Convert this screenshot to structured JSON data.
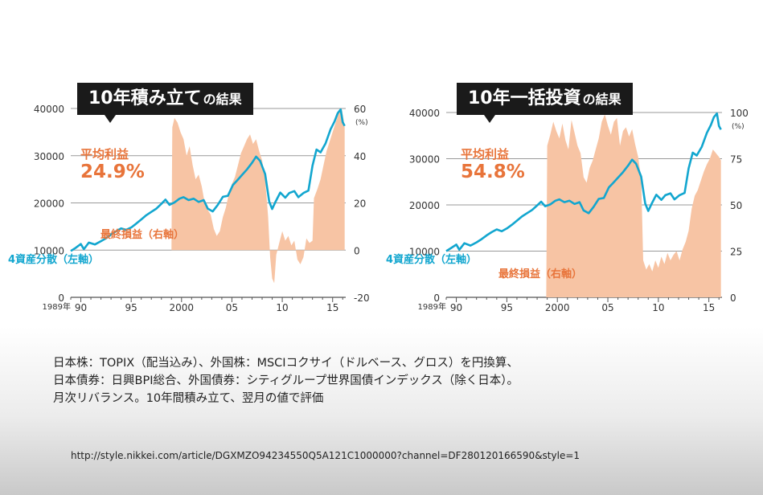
{
  "charts": {
    "left": {
      "title_big": "10年積み立て",
      "title_small": "の結果",
      "profit_label": "平均利益",
      "profit_value": "24.9%",
      "series_label_asset": "4資産分散（左軸）",
      "series_label_profit": "最終損益（右軸）"
    },
    "right": {
      "title_big": "10年一括投資",
      "title_small": "の結果",
      "profit_label": "平均利益",
      "profit_value": "54.8%",
      "series_label_asset": "4資産分散（左軸）",
      "series_label_profit": "最終損益（右軸）"
    }
  },
  "notes": [
    "日本株：TOPIX（配当込み）、外国株：MSCIコクサイ（ドルベース、グロス）を円換算、",
    "日本債券：日興BPI総合、外国債券：シティグループ世界国債インデックス（除く日本）。",
    "月次リバランス。10年間積み立て、翌月の値で評価"
  ],
  "url": "http://style.nikkei.com/article/DGXMZO94234550Q5A121C1000000?channel=DF280120166590&style=1",
  "colors": {
    "asset_line": "#12a6cf",
    "profit_fill": "#f7c4a4",
    "accent_text": "#e8743a",
    "axis_text": "#333333"
  },
  "chart_data": [
    {
      "type": "line",
      "x_tick_labels": [
        "1989年",
        "90",
        "95",
        "2000",
        "05",
        "10",
        "15"
      ],
      "x_ticks": [
        1989,
        1990,
        1995,
        2000,
        2005,
        2010,
        2015
      ],
      "xlim": [
        1989,
        2016.3
      ],
      "y_left_ticks": [
        0,
        10000,
        20000,
        30000,
        40000
      ],
      "ylim_left": [
        0,
        40000
      ],
      "y_right_ticks": [
        -20,
        0,
        20,
        40,
        60
      ],
      "y_right_unit": "(%)",
      "ylim_right": [
        -20,
        60
      ],
      "average_profit": "24.9%",
      "series": [
        {
          "name": "4資産分散（左軸）",
          "axis": "left",
          "style": "line",
          "points": [
            [
              1989,
              9800
            ],
            [
              1989.5,
              10500
            ],
            [
              1990,
              11300
            ],
            [
              1990.3,
              10200
            ],
            [
              1990.8,
              11600
            ],
            [
              1991.4,
              11200
            ],
            [
              1992,
              11900
            ],
            [
              1992.5,
              12500
            ],
            [
              1993,
              13300
            ],
            [
              1993.5,
              14000
            ],
            [
              1994,
              14600
            ],
            [
              1994.5,
              14300
            ],
            [
              1995,
              14800
            ],
            [
              1995.5,
              15600
            ],
            [
              1996,
              16500
            ],
            [
              1996.5,
              17400
            ],
            [
              1997,
              18100
            ],
            [
              1997.5,
              18800
            ],
            [
              1998,
              19800
            ],
            [
              1998.4,
              20700
            ],
            [
              1998.8,
              19600
            ],
            [
              1999.3,
              20100
            ],
            [
              1999.8,
              20900
            ],
            [
              2000.2,
              21200
            ],
            [
              2000.7,
              20600
            ],
            [
              2001.2,
              20900
            ],
            [
              2001.7,
              20200
            ],
            [
              2002.2,
              20600
            ],
            [
              2002.6,
              18800
            ],
            [
              2003.1,
              18200
            ],
            [
              2003.6,
              19600
            ],
            [
              2004.1,
              21300
            ],
            [
              2004.6,
              21500
            ],
            [
              2005.1,
              23800
            ],
            [
              2005.5,
              24700
            ],
            [
              2006,
              25900
            ],
            [
              2006.5,
              27100
            ],
            [
              2007,
              28500
            ],
            [
              2007.4,
              29800
            ],
            [
              2007.8,
              28900
            ],
            [
              2008.3,
              26100
            ],
            [
              2008.7,
              20300
            ],
            [
              2009,
              18700
            ],
            [
              2009.3,
              20100
            ],
            [
              2009.8,
              22200
            ],
            [
              2010.3,
              21100
            ],
            [
              2010.7,
              22100
            ],
            [
              2011.2,
              22500
            ],
            [
              2011.6,
              21200
            ],
            [
              2012.1,
              22100
            ],
            [
              2012.6,
              22600
            ],
            [
              2013,
              27900
            ],
            [
              2013.4,
              31300
            ],
            [
              2013.8,
              30700
            ],
            [
              2014.3,
              32600
            ],
            [
              2014.8,
              35600
            ],
            [
              2015.2,
              37300
            ],
            [
              2015.5,
              39000
            ],
            [
              2015.8,
              39800
            ],
            [
              2016,
              37100
            ],
            [
              2016.2,
              36300
            ]
          ]
        },
        {
          "name": "最終損益（右軸）",
          "axis": "right",
          "style": "area",
          "points": [
            [
              1999,
              2
            ],
            [
              1999.08,
              52
            ],
            [
              1999.3,
              56
            ],
            [
              1999.6,
              54
            ],
            [
              1999.9,
              50
            ],
            [
              2000.2,
              47
            ],
            [
              2000.5,
              40
            ],
            [
              2000.8,
              44
            ],
            [
              2001.1,
              36
            ],
            [
              2001.4,
              30
            ],
            [
              2001.7,
              32
            ],
            [
              2002,
              27
            ],
            [
              2002.3,
              20
            ],
            [
              2002.6,
              17
            ],
            [
              2002.9,
              15
            ],
            [
              2003.2,
              9
            ],
            [
              2003.5,
              6
            ],
            [
              2003.8,
              8
            ],
            [
              2004.1,
              14
            ],
            [
              2004.4,
              18
            ],
            [
              2004.7,
              24
            ],
            [
              2005,
              28
            ],
            [
              2005.3,
              31
            ],
            [
              2005.6,
              36
            ],
            [
              2005.9,
              41
            ],
            [
              2006.2,
              44
            ],
            [
              2006.5,
              47
            ],
            [
              2006.8,
              49
            ],
            [
              2007.1,
              45
            ],
            [
              2007.4,
              47
            ],
            [
              2007.7,
              42
            ],
            [
              2008,
              38
            ],
            [
              2008.3,
              30
            ],
            [
              2008.6,
              14
            ],
            [
              2008.8,
              -3
            ],
            [
              2009,
              -12
            ],
            [
              2009.2,
              -14
            ],
            [
              2009.4,
              -2
            ],
            [
              2009.7,
              3
            ],
            [
              2010,
              8
            ],
            [
              2010.3,
              4
            ],
            [
              2010.6,
              6
            ],
            [
              2010.9,
              2
            ],
            [
              2011.2,
              4
            ],
            [
              2011.5,
              -4
            ],
            [
              2011.8,
              -6
            ],
            [
              2012.1,
              -3
            ],
            [
              2012.4,
              5
            ],
            [
              2012.7,
              3
            ],
            [
              2013,
              4
            ],
            [
              2013.15,
              22
            ],
            [
              2013.5,
              26
            ],
            [
              2013.8,
              30
            ],
            [
              2014.1,
              36
            ],
            [
              2014.4,
              42
            ],
            [
              2014.7,
              46
            ],
            [
              2015,
              50
            ],
            [
              2015.3,
              54
            ],
            [
              2015.6,
              58
            ],
            [
              2015.9,
              60
            ],
            [
              2016.1,
              55
            ],
            [
              2016.2,
              52
            ]
          ]
        }
      ]
    },
    {
      "type": "line",
      "x_tick_labels": [
        "1989年",
        "90",
        "95",
        "2000",
        "05",
        "10",
        "15"
      ],
      "x_ticks": [
        1989,
        1990,
        1995,
        2000,
        2005,
        2010,
        2015
      ],
      "xlim": [
        1989,
        2016.3
      ],
      "y_left_ticks": [
        0,
        10000,
        20000,
        30000,
        40000
      ],
      "ylim_left": [
        0,
        40000
      ],
      "y_right_ticks": [
        0,
        25,
        50,
        75,
        100
      ],
      "y_right_unit": "(%)",
      "ylim_right": [
        0,
        100
      ],
      "average_profit": "54.8%",
      "series": [
        {
          "name": "4資産分散（左軸）",
          "axis": "left",
          "style": "line",
          "points": [
            [
              1989,
              10000
            ],
            [
              1989.5,
              10700
            ],
            [
              1990,
              11400
            ],
            [
              1990.3,
              10300
            ],
            [
              1990.8,
              11700
            ],
            [
              1991.4,
              11200
            ],
            [
              1992,
              11900
            ],
            [
              1992.5,
              12600
            ],
            [
              1993,
              13400
            ],
            [
              1993.5,
              14100
            ],
            [
              1994,
              14700
            ],
            [
              1994.5,
              14300
            ],
            [
              1995,
              14900
            ],
            [
              1995.5,
              15700
            ],
            [
              1996,
              16600
            ],
            [
              1996.5,
              17500
            ],
            [
              1997,
              18200
            ],
            [
              1997.5,
              18900
            ],
            [
              1998,
              19900
            ],
            [
              1998.4,
              20700
            ],
            [
              1998.8,
              19700
            ],
            [
              1999.3,
              20100
            ],
            [
              1999.8,
              20900
            ],
            [
              2000.2,
              21200
            ],
            [
              2000.7,
              20600
            ],
            [
              2001.2,
              20900
            ],
            [
              2001.7,
              20200
            ],
            [
              2002.2,
              20600
            ],
            [
              2002.6,
              18800
            ],
            [
              2003.1,
              18200
            ],
            [
              2003.6,
              19600
            ],
            [
              2004.1,
              21300
            ],
            [
              2004.6,
              21500
            ],
            [
              2005.1,
              23800
            ],
            [
              2005.5,
              24700
            ],
            [
              2006,
              25900
            ],
            [
              2006.5,
              27100
            ],
            [
              2007,
              28500
            ],
            [
              2007.4,
              29800
            ],
            [
              2007.8,
              28900
            ],
            [
              2008.3,
              26100
            ],
            [
              2008.7,
              20300
            ],
            [
              2009,
              18700
            ],
            [
              2009.3,
              20100
            ],
            [
              2009.8,
              22200
            ],
            [
              2010.3,
              21100
            ],
            [
              2010.7,
              22100
            ],
            [
              2011.2,
              22500
            ],
            [
              2011.6,
              21200
            ],
            [
              2012.1,
              22100
            ],
            [
              2012.6,
              22600
            ],
            [
              2013,
              27900
            ],
            [
              2013.4,
              31300
            ],
            [
              2013.8,
              30700
            ],
            [
              2014.3,
              32600
            ],
            [
              2014.8,
              35600
            ],
            [
              2015.2,
              37300
            ],
            [
              2015.5,
              39000
            ],
            [
              2015.8,
              39800
            ],
            [
              2016,
              37100
            ],
            [
              2016.2,
              36300
            ]
          ]
        },
        {
          "name": "最終損益（右軸）",
          "axis": "right",
          "style": "area",
          "points": [
            [
              1998.9,
              0
            ],
            [
              1999,
              82
            ],
            [
              1999.3,
              88
            ],
            [
              1999.6,
              95
            ],
            [
              1999.9,
              90
            ],
            [
              2000.2,
              86
            ],
            [
              2000.5,
              94
            ],
            [
              2000.8,
              85
            ],
            [
              2001.1,
              80
            ],
            [
              2001.4,
              96
            ],
            [
              2001.7,
              89
            ],
            [
              2002,
              82
            ],
            [
              2002.3,
              78
            ],
            [
              2002.6,
              65
            ],
            [
              2002.9,
              62
            ],
            [
              2003.2,
              70
            ],
            [
              2003.5,
              74
            ],
            [
              2003.8,
              80
            ],
            [
              2004.1,
              86
            ],
            [
              2004.4,
              95
            ],
            [
              2004.7,
              99
            ],
            [
              2005,
              93
            ],
            [
              2005.3,
              88
            ],
            [
              2005.6,
              95
            ],
            [
              2005.9,
              97
            ],
            [
              2006.2,
              82
            ],
            [
              2006.5,
              90
            ],
            [
              2006.8,
              92
            ],
            [
              2007.1,
              87
            ],
            [
              2007.4,
              91
            ],
            [
              2007.7,
              83
            ],
            [
              2008,
              76
            ],
            [
              2008.3,
              64
            ],
            [
              2008.5,
              20
            ],
            [
              2008.8,
              15
            ],
            [
              2009.1,
              18
            ],
            [
              2009.4,
              14
            ],
            [
              2009.7,
              20
            ],
            [
              2010,
              16
            ],
            [
              2010.3,
              22
            ],
            [
              2010.6,
              18
            ],
            [
              2010.9,
              24
            ],
            [
              2011.2,
              20
            ],
            [
              2011.5,
              23
            ],
            [
              2011.8,
              25
            ],
            [
              2012.1,
              20
            ],
            [
              2012.4,
              26
            ],
            [
              2012.7,
              30
            ],
            [
              2013,
              36
            ],
            [
              2013.3,
              48
            ],
            [
              2013.6,
              55
            ],
            [
              2013.9,
              58
            ],
            [
              2014.2,
              63
            ],
            [
              2014.5,
              68
            ],
            [
              2014.8,
              72
            ],
            [
              2015.1,
              75
            ],
            [
              2015.4,
              80
            ],
            [
              2015.7,
              78
            ],
            [
              2016,
              76
            ],
            [
              2016.2,
              74
            ]
          ]
        }
      ]
    }
  ]
}
